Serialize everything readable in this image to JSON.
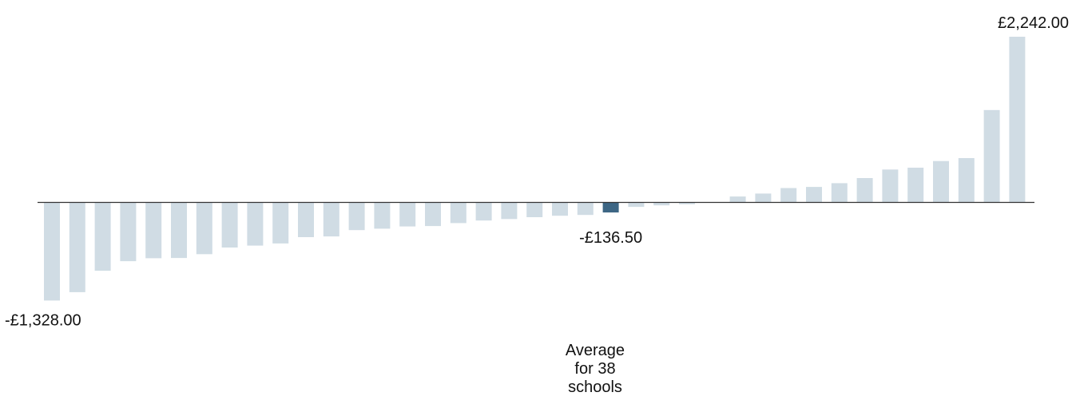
{
  "chart_data": {
    "type": "bar",
    "colors": {
      "bar": "#d0dce4",
      "highlight": "#3d6684",
      "baseline": "#333333"
    },
    "values": [
      -1328,
      -1215,
      -925,
      -795,
      -755,
      -752,
      -700,
      -610,
      -585,
      -555,
      -470,
      -460,
      -375,
      -355,
      -325,
      -320,
      -280,
      -245,
      -225,
      -200,
      -180,
      -170,
      -136.5,
      -60,
      -40,
      -25,
      0,
      80,
      120,
      195,
      210,
      260,
      330,
      445,
      470,
      560,
      600,
      1250,
      2242
    ],
    "highlight_index": 22,
    "labels": {
      "min": "-£1,328.00",
      "max": "£2,242.00",
      "average": "-£136.50"
    },
    "annotation": [
      "Average",
      "for 38",
      "schools"
    ],
    "ylim": [
      -1328,
      2242
    ]
  }
}
